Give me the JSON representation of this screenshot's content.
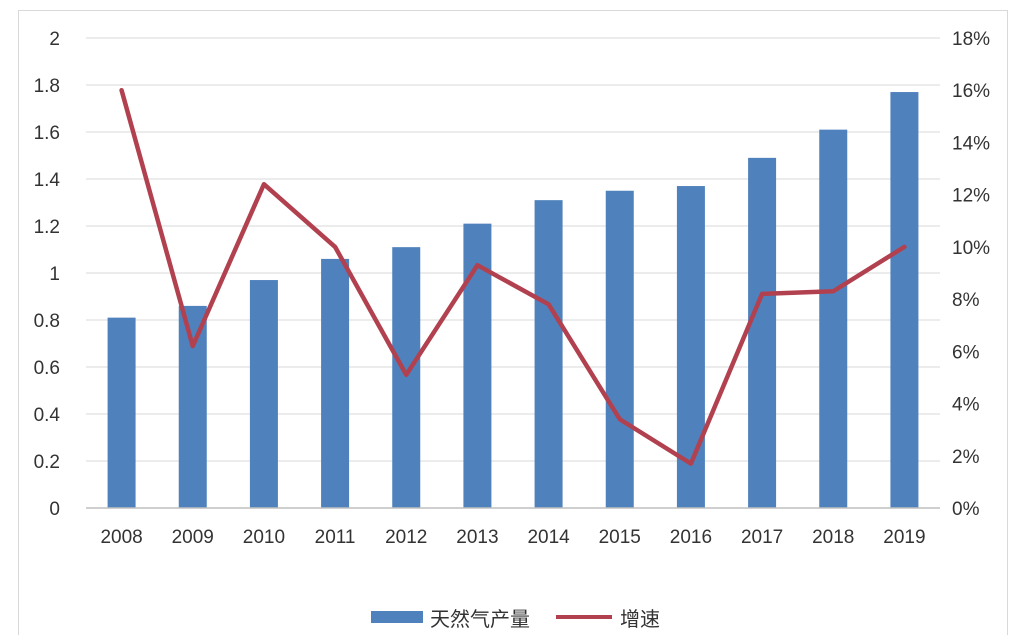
{
  "chart_data": {
    "type": "bar",
    "categories": [
      "2008",
      "2009",
      "2010",
      "2011",
      "2012",
      "2013",
      "2014",
      "2015",
      "2016",
      "2017",
      "2018",
      "2019"
    ],
    "series": [
      {
        "name": "天然气产量",
        "type": "bar",
        "axis": "left",
        "color": "#4f81bd",
        "values": [
          0.81,
          0.86,
          0.97,
          1.06,
          1.11,
          1.21,
          1.31,
          1.35,
          1.37,
          1.49,
          1.61,
          1.77
        ]
      },
      {
        "name": "增速",
        "type": "line",
        "axis": "right",
        "color": "#b2414f",
        "values": [
          0.16,
          0.062,
          0.124,
          0.1,
          0.051,
          0.093,
          0.078,
          0.034,
          0.017,
          0.082,
          0.083,
          0.1
        ]
      }
    ],
    "y_left": {
      "min": 0,
      "max": 2,
      "ticks": [
        "0",
        "0.2",
        "0.4",
        "0.6",
        "0.8",
        "1",
        "1.2",
        "1.4",
        "1.6",
        "1.8",
        "2"
      ]
    },
    "y_right": {
      "min": 0,
      "max": 0.18,
      "ticks": [
        "0%",
        "2%",
        "4%",
        "6%",
        "8%",
        "10%",
        "12%",
        "14%",
        "16%",
        "18%"
      ]
    },
    "grid": true,
    "legend_position": "bottom"
  }
}
